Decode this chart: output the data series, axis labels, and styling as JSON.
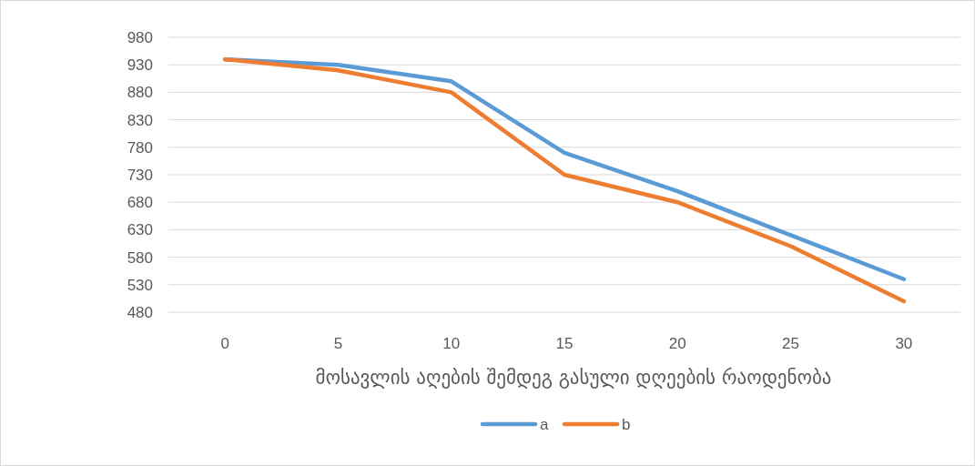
{
  "chart_data": {
    "type": "line",
    "xlabel": "მოსავლის აღების შემდეგ გასული დღეების რაოდენობა",
    "categories": [
      "0",
      "5",
      "10",
      "15",
      "20",
      "25",
      "30"
    ],
    "series": [
      {
        "name": "a",
        "color": "#5b9bd5",
        "values": [
          940,
          930,
          900,
          770,
          700,
          620,
          540
        ]
      },
      {
        "name": "b",
        "color": "#ed7d31",
        "values": [
          940,
          920,
          880,
          730,
          680,
          600,
          500
        ]
      }
    ],
    "ylim": [
      480,
      980
    ],
    "yticks": [
      480,
      530,
      580,
      630,
      680,
      730,
      780,
      830,
      880,
      930,
      980
    ],
    "grid": "y",
    "legend": "bottom",
    "marker": "none",
    "line_style": "solid"
  }
}
